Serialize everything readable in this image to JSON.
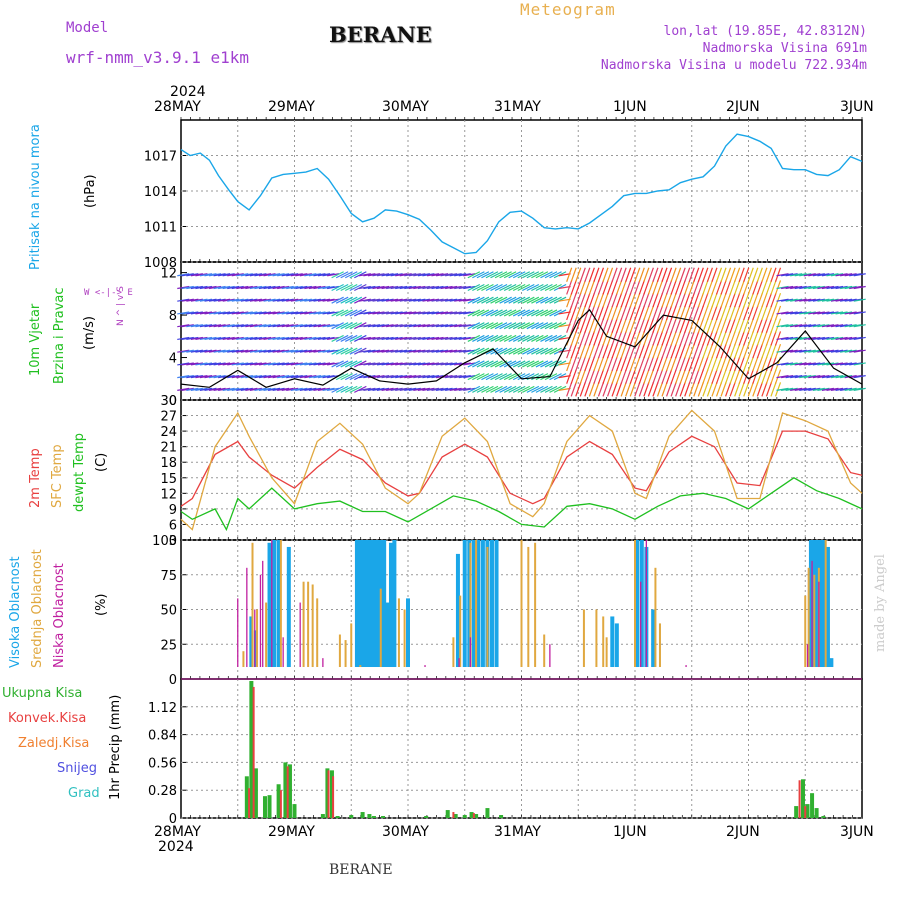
{
  "header": {
    "model_label": "Model",
    "model_name": "wrf-nmm_v3.9.1 e1km",
    "station": "BERANE",
    "product": "Meteogram",
    "coords": "lon,lat (19.85E, 42.8312N)",
    "altitude": "Nadmorska Visina 691m",
    "model_altitude": "Nadmorska Visina u modelu 722.934m",
    "footer_station": "BERANE",
    "credit": "made by Angel"
  },
  "time_axis": {
    "year": "2024",
    "labels": [
      "28MAY",
      "29MAY",
      "30MAY",
      "31MAY",
      "1JUN",
      "2JUN",
      "3JUN"
    ]
  },
  "colors": {
    "pressure": "#1aa6e8",
    "temp2m": "#e84040",
    "sfc": "#e0a840",
    "dewpt": "#20c020",
    "cloud_high": "#1aa6e8",
    "cloud_mid": "#e0a840",
    "cloud_low": "#c020a0",
    "precip_total": "#30b030",
    "precip_conv": "#e84040"
  },
  "panels": {
    "pressure": {
      "label": "Pritisak na nivou mora",
      "unit": "(hPa)"
    },
    "wind": {
      "label1": "10m Vjetar",
      "label2": "Brzina i Pravac",
      "unit": "(m/s)",
      "compass": "W <-|-> E",
      "compass_ns": "N ^ | v S"
    },
    "temp": {
      "label_2m": "2m Temp",
      "label_sfc": "SFC Temp",
      "label_dew": "dewpt Temp",
      "unit": "(C)"
    },
    "cloud": {
      "label_high": "Visoka Oblacnost",
      "label_mid": "Srednja Oblacnost",
      "label_low": "Niska Oblacnost",
      "unit": "(%)"
    },
    "precip": {
      "label": "1hr Precip (mm)",
      "legend": [
        "Ukupna Kisa",
        "Konvek.Kisa",
        "Zaledj.Kisa",
        "Snijeg",
        "Grad"
      ],
      "legend_colors": [
        "#30b030",
        "#e84040",
        "#f08030",
        "#5050e0",
        "#30c0c0"
      ]
    }
  },
  "chart_data": [
    {
      "type": "line",
      "name": "pressure",
      "ylim": [
        1008,
        1020
      ],
      "yticks": [
        "1008",
        "1011",
        "1014",
        "1017"
      ],
      "x_days": [
        0,
        0.08,
        0.17,
        0.25,
        0.33,
        0.42,
        0.5,
        0.6,
        0.7,
        0.8,
        0.9,
        1.0,
        1.1,
        1.2,
        1.3,
        1.4,
        1.5,
        1.6,
        1.7,
        1.8,
        1.9,
        2.0,
        2.1,
        2.2,
        2.3,
        2.4,
        2.5,
        2.6,
        2.7,
        2.8,
        2.9,
        3.0,
        3.1,
        3.2,
        3.3,
        3.4,
        3.5,
        3.6,
        3.7,
        3.8,
        3.9,
        4.0,
        4.1,
        4.2,
        4.3,
        4.4,
        4.5,
        4.6,
        4.7,
        4.8,
        4.9,
        5.0,
        5.1,
        5.2,
        5.3,
        5.4,
        5.5,
        5.6,
        5.7,
        5.8,
        5.9,
        6.0
      ],
      "values": [
        1017.5,
        1017.0,
        1017.2,
        1016.6,
        1015.3,
        1014.1,
        1013.1,
        1012.4,
        1013.6,
        1015.1,
        1015.4,
        1015.5,
        1015.6,
        1015.9,
        1015.0,
        1013.6,
        1012.1,
        1011.4,
        1011.7,
        1012.4,
        1012.3,
        1012.0,
        1011.6,
        1010.7,
        1009.7,
        1009.2,
        1008.7,
        1008.8,
        1009.8,
        1011.4,
        1012.2,
        1012.3,
        1011.7,
        1010.9,
        1010.8,
        1010.9,
        1010.8,
        1011.3,
        1012.0,
        1012.7,
        1013.6,
        1013.8,
        1013.8,
        1014.0,
        1014.1,
        1014.7,
        1015.0,
        1015.2,
        1016.1,
        1017.8,
        1018.8,
        1018.6,
        1018.2,
        1017.6,
        1015.9,
        1015.8,
        1015.8,
        1015.4,
        1015.3,
        1015.8,
        1016.9,
        1016.5
      ]
    },
    {
      "type": "line",
      "name": "wind-speed",
      "ylim": [
        0,
        13
      ],
      "yticks": [
        "0",
        "4",
        "8",
        "12"
      ],
      "x_days": [
        0,
        0.25,
        0.5,
        0.75,
        1.0,
        1.25,
        1.5,
        1.75,
        2.0,
        2.25,
        2.5,
        2.75,
        3.0,
        3.25,
        3.5,
        3.6,
        3.75,
        4.0,
        4.25,
        4.5,
        4.75,
        5.0,
        5.25,
        5.5,
        5.75,
        6.0
      ],
      "values": [
        1.5,
        1.2,
        2.8,
        1.2,
        2.0,
        1.4,
        3.0,
        1.8,
        1.5,
        1.8,
        3.5,
        4.8,
        2.0,
        2.2,
        7.5,
        8.5,
        6.0,
        5.0,
        8.0,
        7.5,
        5.0,
        2.0,
        3.5,
        6.5,
        3.0,
        1.5
      ]
    },
    {
      "type": "line",
      "name": "temperature",
      "ylim": [
        3,
        30
      ],
      "yticks": [
        "3",
        "6",
        "9",
        "12",
        "15",
        "18",
        "21",
        "24",
        "27",
        "30"
      ],
      "series": [
        {
          "name": "2m Temp",
          "x_days": [
            0,
            0.1,
            0.3,
            0.5,
            0.6,
            0.8,
            1.0,
            1.2,
            1.4,
            1.6,
            1.8,
            2.0,
            2.1,
            2.3,
            2.5,
            2.7,
            2.9,
            3.1,
            3.2,
            3.4,
            3.6,
            3.8,
            4.0,
            4.1,
            4.3,
            4.5,
            4.7,
            4.9,
            5.1,
            5.3,
            5.5,
            5.7,
            5.9,
            6.0
          ],
          "values": [
            9.5,
            11.0,
            19.5,
            22.0,
            19.0,
            15.5,
            13.0,
            17.0,
            20.5,
            18.5,
            14.0,
            11.5,
            12.0,
            19.0,
            21.5,
            19.0,
            12.0,
            10.0,
            11.0,
            19.0,
            22.0,
            19.5,
            13.0,
            12.5,
            20.0,
            23.0,
            21.0,
            14.0,
            13.5,
            24.0,
            24.0,
            22.5,
            16.0,
            15.5
          ]
        },
        {
          "name": "SFC Temp",
          "x_days": [
            0,
            0.1,
            0.3,
            0.5,
            0.6,
            0.8,
            1.0,
            1.2,
            1.4,
            1.6,
            1.8,
            2.0,
            2.1,
            2.3,
            2.5,
            2.7,
            2.9,
            3.1,
            3.2,
            3.4,
            3.6,
            3.8,
            4.0,
            4.1,
            4.3,
            4.5,
            4.7,
            4.9,
            5.1,
            5.3,
            5.5,
            5.7,
            5.9,
            6.0
          ],
          "values": [
            7.0,
            5.0,
            21.0,
            27.5,
            23.0,
            15.0,
            10.0,
            22.0,
            25.5,
            21.5,
            13.0,
            10.0,
            12.0,
            23.0,
            26.5,
            22.0,
            10.0,
            7.5,
            10.0,
            22.0,
            27.0,
            24.0,
            12.0,
            11.0,
            23.0,
            28.0,
            24.0,
            11.0,
            11.0,
            27.5,
            26.0,
            24.0,
            14.0,
            12.0
          ]
        },
        {
          "name": "dewpt Temp",
          "x_days": [
            0,
            0.1,
            0.3,
            0.4,
            0.5,
            0.6,
            0.8,
            1.0,
            1.2,
            1.4,
            1.6,
            1.8,
            2.0,
            2.2,
            2.4,
            2.6,
            2.8,
            3.0,
            3.2,
            3.4,
            3.6,
            3.8,
            4.0,
            4.2,
            4.4,
            4.6,
            4.8,
            5.0,
            5.2,
            5.4,
            5.6,
            5.8,
            6.0
          ],
          "values": [
            8.5,
            7.0,
            9.0,
            5.0,
            11.0,
            9.0,
            13.0,
            9.0,
            10.0,
            10.5,
            8.5,
            8.5,
            6.5,
            9.0,
            11.5,
            10.5,
            8.5,
            6.0,
            5.5,
            9.5,
            10.0,
            9.0,
            7.0,
            9.5,
            11.5,
            12.0,
            11.0,
            9.0,
            12.0,
            15.0,
            12.5,
            11.0,
            9.0
          ]
        }
      ]
    },
    {
      "type": "bar",
      "name": "cloud-cover",
      "ylim": [
        0,
        100
      ],
      "yticks": [
        "0",
        "25",
        "50",
        "75",
        "100"
      ],
      "series": [
        {
          "name": "Visoka Oblacnost",
          "x_days": [
            0.62,
            0.66,
            0.78,
            0.82,
            0.86,
            0.95,
            1.55,
            1.58,
            1.61,
            1.64,
            1.67,
            1.7,
            1.73,
            1.76,
            1.79,
            1.82,
            1.85,
            1.88,
            2.0,
            2.44,
            2.5,
            2.54,
            2.58,
            2.62,
            2.66,
            2.7,
            2.74,
            2.78,
            3.8,
            3.84,
            4.02,
            4.06,
            4.1,
            4.16,
            5.55,
            5.58,
            5.61,
            5.64,
            5.67,
            5.7,
            5.73
          ],
          "values": [
            45,
            35,
            98,
            100,
            100,
            95,
            100,
            100,
            100,
            100,
            100,
            100,
            100,
            100,
            100,
            55,
            98,
            100,
            58,
            90,
            100,
            100,
            100,
            100,
            100,
            100,
            100,
            100,
            45,
            40,
            100,
            100,
            95,
            50,
            100,
            100,
            100,
            100,
            100,
            95,
            15
          ]
        },
        {
          "name": "Srednja Oblacnost",
          "x_days": [
            0.45,
            0.55,
            0.63,
            0.67,
            0.75,
            0.88,
            1.08,
            1.12,
            1.16,
            1.2,
            1.4,
            1.45,
            1.5,
            1.58,
            1.76,
            1.92,
            1.97,
            2.4,
            2.46,
            2.55,
            2.6,
            2.7,
            3.0,
            3.06,
            3.12,
            3.2,
            3.55,
            3.66,
            3.72,
            3.75,
            4.0,
            4.18,
            4.22,
            5.5,
            5.53,
            5.58,
            5.62,
            5.68
          ],
          "values": [
            5,
            20,
            98,
            50,
            55,
            100,
            70,
            70,
            68,
            58,
            32,
            28,
            40,
            10,
            65,
            58,
            50,
            30,
            60,
            98,
            100,
            95,
            100,
            95,
            98,
            32,
            50,
            50,
            45,
            30,
            100,
            80,
            40,
            60,
            80,
            75,
            80,
            100
          ]
        },
        {
          "name": "Niska Oblacnost",
          "x_days": [
            0.5,
            0.58,
            0.65,
            0.7,
            0.72,
            0.8,
            0.9,
            1.05,
            1.25,
            1.35,
            1.6,
            2.15,
            2.45,
            2.55,
            3.25,
            3.4,
            4.05,
            4.1,
            4.45,
            4.6,
            5.52,
            5.56,
            5.62
          ],
          "values": [
            58,
            80,
            50,
            75,
            85,
            100,
            30,
            55,
            15,
            5,
            8,
            10,
            15,
            30,
            25,
            5,
            70,
            100,
            10,
            8,
            25,
            85,
            70
          ]
        }
      ]
    },
    {
      "type": "bar",
      "name": "precipitation",
      "ylim": [
        0,
        1.4
      ],
      "yticks": [
        "0",
        "0.28",
        "0.56",
        "0.84",
        "1.12"
      ],
      "series": [
        {
          "name": "Ukupna Kisa",
          "x_days": [
            0.58,
            0.62,
            0.66,
            0.74,
            0.78,
            0.86,
            0.92,
            0.96,
            1.0,
            1.25,
            1.29,
            1.33,
            1.38,
            1.5,
            1.6,
            1.66,
            1.7,
            1.78,
            2.16,
            2.35,
            2.42,
            2.5,
            2.56,
            2.6,
            2.7,
            2.82,
            5.42,
            5.48,
            5.52,
            5.56,
            5.6,
            5.66
          ],
          "values": [
            0.42,
            1.38,
            0.5,
            0.22,
            0.23,
            0.34,
            0.56,
            0.54,
            0.14,
            0.04,
            0.5,
            0.48,
            0.02,
            0.03,
            0.06,
            0.04,
            0.02,
            0.02,
            0.02,
            0.08,
            0.04,
            0.03,
            0.06,
            0.04,
            0.1,
            0.03,
            0.12,
            0.39,
            0.14,
            0.25,
            0.1,
            0.02
          ]
        },
        {
          "name": "Konvek.Kisa",
          "x_days": [
            0.6,
            0.64,
            0.88,
            0.94,
            1.3,
            1.34,
            2.4,
            2.58,
            5.45,
            5.5
          ],
          "values": [
            0.3,
            1.32,
            0.28,
            0.52,
            0.48,
            0.42,
            0.06,
            0.05,
            0.38,
            0.12
          ]
        }
      ]
    }
  ]
}
